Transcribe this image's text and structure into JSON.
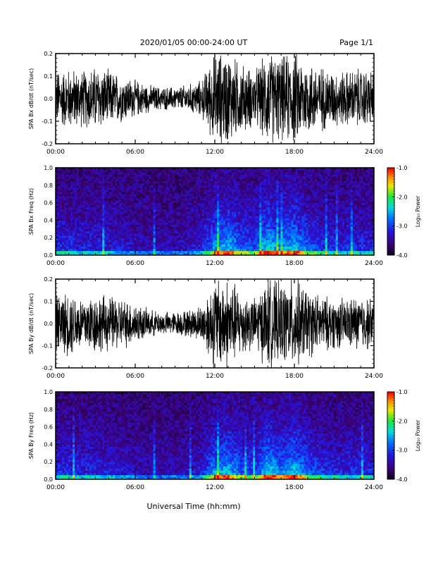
{
  "header": {
    "title": "2020/01/05  00:00-24:00 UT",
    "page": "Page 1/1"
  },
  "footer": {
    "xlabel": "Universal Time (hh:mm)"
  },
  "chart_data": [
    {
      "type": "line",
      "panel": "SPA Bx dB/dt",
      "ylabel": "SPA Bx dB/dt (nT/sec)",
      "xlim": [
        0,
        24
      ],
      "ylim": [
        -0.2,
        0.2
      ],
      "xticks": [
        "00:00",
        "06:00",
        "12:00",
        "18:00",
        "24:00"
      ],
      "yticks": [
        "-0.2",
        "-0.1",
        "0.0",
        "0.1",
        "0.2"
      ],
      "color": "#000000",
      "series": [
        {
          "x": [
            0,
            1,
            2,
            3,
            4,
            5,
            6,
            7,
            8,
            9,
            10,
            11,
            12,
            13,
            14,
            15,
            16,
            17,
            18,
            19,
            20,
            21,
            22,
            23,
            24
          ],
          "amplitude": [
            0.12,
            0.13,
            0.12,
            0.14,
            0.12,
            0.1,
            0.08,
            0.06,
            0.05,
            0.05,
            0.06,
            0.08,
            0.2,
            0.2,
            0.15,
            0.12,
            0.2,
            0.18,
            0.2,
            0.16,
            0.14,
            0.12,
            0.12,
            0.13,
            0.12
          ]
        }
      ]
    },
    {
      "type": "heatmap",
      "panel": "SPA Bx Freq",
      "ylabel": "SPA Bx Freq (Hz)",
      "xlim": [
        0,
        24
      ],
      "ylim": [
        0.0,
        1.0
      ],
      "xticks": [
        "00:00",
        "06:00",
        "12:00",
        "18:00",
        "24:00"
      ],
      "yticks": [
        "0.0",
        "0.2",
        "0.4",
        "0.6",
        "0.8",
        "1.0"
      ],
      "colorbar": {
        "label": "Log₁₀ Power",
        "range": [
          -4.0,
          -1.0
        ],
        "ticks": [
          "-1.0",
          "-2.0",
          "-3.0",
          "-4.0"
        ]
      },
      "activity": {
        "x": [
          0,
          1,
          2,
          3,
          4,
          5,
          6,
          7,
          8,
          9,
          10,
          11,
          12,
          13,
          14,
          15,
          16,
          17,
          18,
          19,
          20,
          21,
          22,
          23,
          24
        ],
        "level": [
          0.4,
          0.4,
          0.35,
          0.4,
          0.35,
          0.3,
          0.25,
          0.2,
          0.2,
          0.2,
          0.25,
          0.35,
          0.75,
          0.85,
          0.6,
          0.5,
          0.95,
          0.7,
          0.9,
          0.6,
          0.45,
          0.4,
          0.4,
          0.4,
          0.4
        ]
      }
    },
    {
      "type": "line",
      "panel": "SPA By dB/dt",
      "ylabel": "SPA By dB/dt (nT/sec)",
      "xlim": [
        0,
        24
      ],
      "ylim": [
        -0.2,
        0.2
      ],
      "xticks": [
        "00:00",
        "06:00",
        "12:00",
        "18:00",
        "24:00"
      ],
      "yticks": [
        "-0.2",
        "-0.1",
        "0.0",
        "0.1",
        "0.2"
      ],
      "color": "#000000",
      "series": [
        {
          "x": [
            0,
            1,
            2,
            3,
            4,
            5,
            6,
            7,
            8,
            9,
            10,
            11,
            12,
            13,
            14,
            15,
            16,
            17,
            18,
            19,
            20,
            21,
            22,
            23,
            24
          ],
          "amplitude": [
            0.12,
            0.14,
            0.12,
            0.13,
            0.12,
            0.11,
            0.09,
            0.06,
            0.05,
            0.05,
            0.06,
            0.08,
            0.2,
            0.2,
            0.14,
            0.11,
            0.2,
            0.17,
            0.2,
            0.15,
            0.12,
            0.11,
            0.11,
            0.12,
            0.11
          ]
        }
      ]
    },
    {
      "type": "heatmap",
      "panel": "SPA By Freq",
      "ylabel": "SPA By Freq (Hz)",
      "xlim": [
        0,
        24
      ],
      "ylim": [
        0.0,
        1.0
      ],
      "xticks": [
        "00:00",
        "06:00",
        "12:00",
        "18:00",
        "24:00"
      ],
      "yticks": [
        "0.0",
        "0.2",
        "0.4",
        "0.6",
        "0.8",
        "1.0"
      ],
      "colorbar": {
        "label": "Log₁₀ Power",
        "range": [
          -4.0,
          -1.0
        ],
        "ticks": [
          "-1.0",
          "-2.0",
          "-3.0",
          "-4.0"
        ]
      },
      "activity": {
        "x": [
          0,
          1,
          2,
          3,
          4,
          5,
          6,
          7,
          8,
          9,
          10,
          11,
          12,
          13,
          14,
          15,
          16,
          17,
          18,
          19,
          20,
          21,
          22,
          23,
          24
        ],
        "level": [
          0.4,
          0.42,
          0.38,
          0.4,
          0.35,
          0.3,
          0.25,
          0.2,
          0.2,
          0.22,
          0.25,
          0.35,
          0.75,
          0.85,
          0.6,
          0.5,
          0.95,
          0.7,
          0.9,
          0.6,
          0.45,
          0.4,
          0.4,
          0.4,
          0.4
        ]
      }
    }
  ]
}
